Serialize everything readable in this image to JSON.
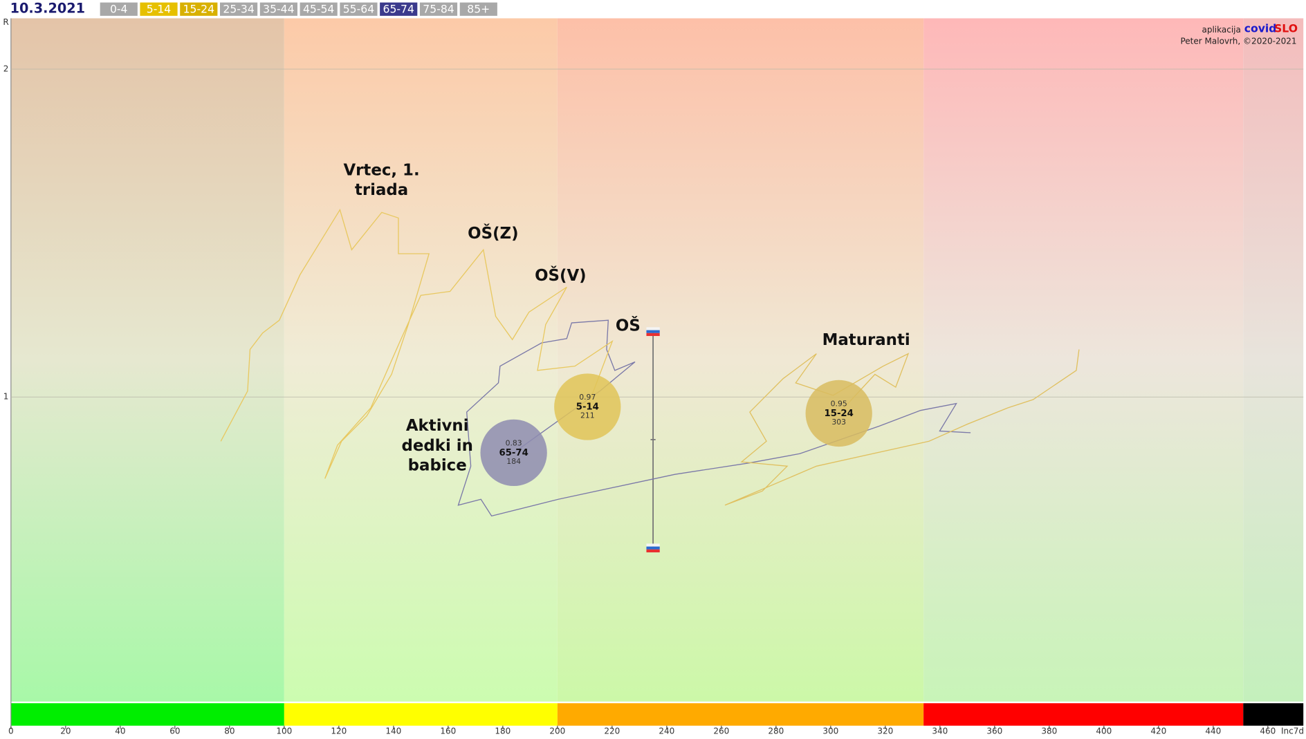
{
  "chart_data": {
    "type": "bubble-trail",
    "date": "10.3.2021",
    "credit": {
      "prefix": "aplikacija",
      "brand1": "covid",
      "brand2": "SLO",
      "author": "Peter Malovrh, ©2020-2021"
    },
    "ylabel": "R",
    "xlabel": "Inc7d",
    "xlim": [
      0,
      473
    ],
    "ylim": [
      0.071,
      2.155
    ],
    "xticks": [
      0,
      20,
      40,
      60,
      80,
      100,
      120,
      140,
      160,
      180,
      200,
      220,
      240,
      260,
      280,
      300,
      320,
      340,
      360,
      380,
      400,
      420,
      440,
      460
    ],
    "yticks": [
      1,
      2
    ],
    "grid": true,
    "zones": [
      {
        "from": 0,
        "to": 100,
        "color": "#00ee00",
        "bg": [
          "#e4c4a8",
          "#e6e8d0",
          "#a8f8a8"
        ]
      },
      {
        "from": 100,
        "to": 200,
        "color": "#ffff00",
        "bg": [
          "#fccaa8",
          "#f0ecd6",
          "#ccfcb0"
        ]
      },
      {
        "from": 200,
        "to": 334,
        "color": "#ffaa00",
        "bg": [
          "#fdc0a8",
          "#f0e8d4",
          "#ccf8a8"
        ]
      },
      {
        "from": 334,
        "to": 451,
        "color": "#ff0000",
        "bg": [
          "#feb8b8",
          "#ede6dc",
          "#c8f4b8"
        ]
      },
      {
        "from": 451,
        "to": 473,
        "color": "#000000",
        "bg": [
          "#f4bcbc",
          "#e8e4dc",
          "#c4f0bc"
        ]
      }
    ],
    "ageGroups": [
      {
        "label": "0-4",
        "color": "#a8a8a8"
      },
      {
        "label": "5-14",
        "color": "#e6c000"
      },
      {
        "label": "15-24",
        "color": "#d8b000"
      },
      {
        "label": "25-34",
        "color": "#a8a8a8"
      },
      {
        "label": "35-44",
        "color": "#a8a8a8"
      },
      {
        "label": "45-54",
        "color": "#a8a8a8"
      },
      {
        "label": "55-64",
        "color": "#a8a8a8"
      },
      {
        "label": "65-74",
        "color": "#3b3a8c"
      },
      {
        "label": "75-84",
        "color": "#a8a8a8"
      },
      {
        "label": "85+",
        "color": "#a8a8a8"
      }
    ],
    "series": [
      {
        "name": "65-74",
        "color": "#7a78a8",
        "fill": "#8e8cb0",
        "x": [
          351.2,
          339.9,
          346.0,
          332.9,
          317.7,
          288.7,
          270.4,
          243.0,
          200.3,
          175.9,
          172.0,
          163.7,
          168.3,
          166.8,
          178.4,
          179.0,
          194.2,
          203.4,
          205.2,
          218.6,
          218.0,
          221.0,
          228.4,
          215.5,
          194.2,
          184
        ],
        "y": [
          0.891,
          0.896,
          0.98,
          0.959,
          0.911,
          0.827,
          0.799,
          0.764,
          0.688,
          0.637,
          0.688,
          0.67,
          0.789,
          0.954,
          1.043,
          1.094,
          1.165,
          1.178,
          1.226,
          1.234,
          1.145,
          1.081,
          1.107,
          1.018,
          0.891,
          0.83
        ]
      },
      {
        "name": "5-14",
        "color": "#e8c860",
        "fill": "#e0c458",
        "x": [
          76.8,
          86.6,
          87.5,
          92.1,
          98.2,
          105.8,
          120.4,
          124.7,
          135.7,
          141.8,
          141.8,
          153.0,
          145.4,
          139.3,
          130.2,
          121.0,
          114.9,
          119.5,
          131.7,
          142.4,
          150.0,
          160.7,
          172.9,
          177.4,
          183.5,
          189.6,
          203.4,
          195.7,
          192.7,
          206.4,
          220.1,
          211
        ],
        "y": [
          0.865,
          1.018,
          1.145,
          1.195,
          1.234,
          1.373,
          1.571,
          1.449,
          1.563,
          1.546,
          1.437,
          1.437,
          1.221,
          1.069,
          0.942,
          0.865,
          0.751,
          0.853,
          0.967,
          1.17,
          1.31,
          1.322,
          1.449,
          1.246,
          1.175,
          1.259,
          1.335,
          1.221,
          1.081,
          1.094,
          1.17,
          0.97
        ]
      },
      {
        "name": "15-24",
        "color": "#e0c060",
        "fill": "#d8bc60",
        "x": [
          390.9,
          389.9,
          374.1,
          364.9,
          349.7,
          336.0,
          294.8,
          261.3,
          275.0,
          284.1,
          267.4,
          276.5,
          270.4,
          282.6,
          294.8,
          287.2,
          300.9,
          319.2,
          328.4,
          323.8,
          316.2,
          303
        ],
        "y": [
          1.145,
          1.081,
          0.992,
          0.967,
          0.916,
          0.865,
          0.789,
          0.67,
          0.713,
          0.789,
          0.802,
          0.865,
          0.954,
          1.056,
          1.132,
          1.043,
          1.005,
          1.094,
          1.132,
          1.03,
          1.069,
          0.95
        ]
      }
    ],
    "range": {
      "x": 235,
      "low": 0.54,
      "mid": 0.87,
      "high": 1.2
    },
    "annotations": [
      {
        "lines": [
          "Vrtec, 1.",
          "triada"
        ]
      },
      {
        "lines": [
          "OŠ(Z)"
        ]
      },
      {
        "lines": [
          "OŠ(V)"
        ]
      },
      {
        "lines": [
          "OŠ"
        ]
      },
      {
        "lines": [
          "Maturanti"
        ]
      },
      {
        "lines": [
          "Aktivni",
          "dedki in",
          "babice"
        ]
      }
    ]
  }
}
